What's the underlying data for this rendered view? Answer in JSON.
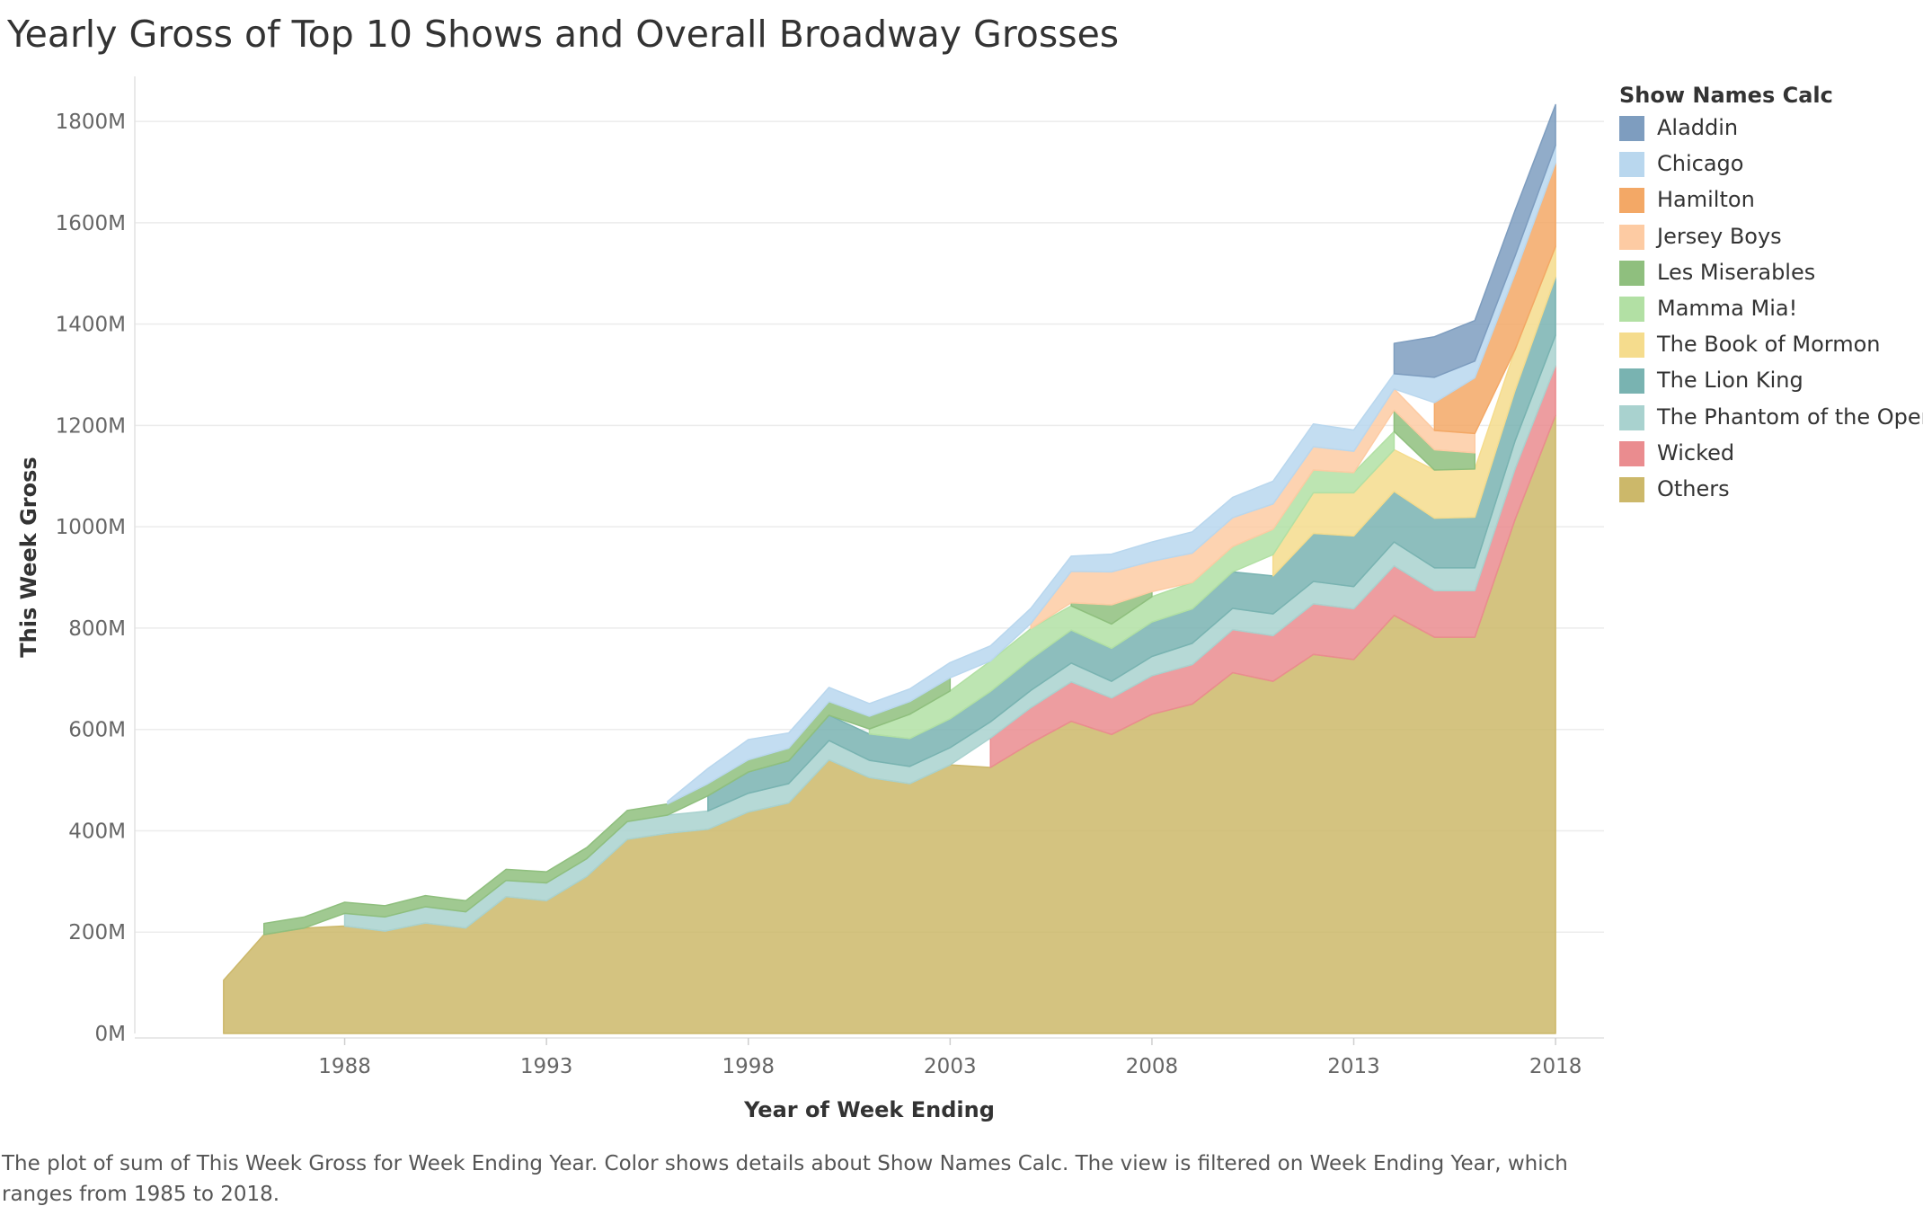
{
  "title": "Yearly Gross of Top 10 Shows and Overall Broadway Grosses",
  "caption": "The plot of sum of This Week Gross for Week Ending Year.  Color shows details about Show Names Calc. The view is filtered on Week Ending Year, which ranges from 1985 to 2018.",
  "legend": {
    "title": "Show Names Calc",
    "placement": "right",
    "items": [
      {
        "name": "Aladdin",
        "color": "#7e9dbf"
      },
      {
        "name": "Chicago",
        "color": "#b9d7ee"
      },
      {
        "name": "Hamilton",
        "color": "#f3a866"
      },
      {
        "name": "Jersey Boys",
        "color": "#fdcba3"
      },
      {
        "name": "Les Miserables",
        "color": "#8fbf7e"
      },
      {
        "name": "Mamma Mia!",
        "color": "#b2e0a4"
      },
      {
        "name": "The Book of Mormon",
        "color": "#f5dc8d"
      },
      {
        "name": "The Lion King",
        "color": "#79b3b1"
      },
      {
        "name": "The Phantom of the Opera",
        "color": "#a9d2cf"
      },
      {
        "name": "Wicked",
        "color": "#ea8c8f"
      },
      {
        "name": "Others",
        "color": "#ccb86a"
      }
    ]
  },
  "chart_data": {
    "type": "area",
    "stacked": true,
    "title": "Yearly Gross of Top 10 Shows and Overall Broadway Grosses",
    "xlabel": "Year of Week Ending",
    "ylabel": "This Week Gross",
    "ylim": [
      0,
      1880
    ],
    "y_unit": "M",
    "grid": true,
    "x_ticks": [
      1988,
      1993,
      1998,
      2003,
      2008,
      2013,
      2018
    ],
    "y_ticks": [
      {
        "value": 0,
        "label": "0M"
      },
      {
        "value": 200,
        "label": "200M"
      },
      {
        "value": 400,
        "label": "400M"
      },
      {
        "value": 600,
        "label": "600M"
      },
      {
        "value": 800,
        "label": "800M"
      },
      {
        "value": 1000,
        "label": "1000M"
      },
      {
        "value": 1200,
        "label": "1200M"
      },
      {
        "value": 1400,
        "label": "1400M"
      },
      {
        "value": 1600,
        "label": "1600M"
      },
      {
        "value": 1800,
        "label": "1800M"
      }
    ],
    "x": [
      1985,
      1986,
      1987,
      1988,
      1989,
      1990,
      1991,
      1992,
      1993,
      1994,
      1995,
      1996,
      1997,
      1998,
      1999,
      2000,
      2001,
      2002,
      2003,
      2004,
      2005,
      2006,
      2007,
      2008,
      2009,
      2010,
      2011,
      2012,
      2013,
      2014,
      2015,
      2016,
      2017,
      2018
    ],
    "series": [
      {
        "name": "Others",
        "values": [
          105,
          195,
          208,
          212,
          202,
          218,
          208,
          270,
          262,
          310,
          383,
          395,
          403,
          437,
          455,
          540,
          505,
          493,
          530,
          525,
          573,
          616,
          590,
          630,
          650,
          712,
          695,
          748,
          738,
          825,
          782,
          782,
          1015,
          1220
        ]
      },
      {
        "name": "Wicked",
        "values": [
          null,
          null,
          null,
          null,
          null,
          null,
          null,
          null,
          null,
          null,
          null,
          null,
          null,
          null,
          null,
          null,
          null,
          null,
          null,
          58,
          70,
          78,
          72,
          76,
          78,
          85,
          90,
          100,
          100,
          98,
          92,
          92,
          100,
          98
        ]
      },
      {
        "name": "The Phantom of the Opera",
        "values": [
          null,
          null,
          null,
          25,
          28,
          32,
          32,
          32,
          35,
          35,
          35,
          36,
          36,
          37,
          38,
          38,
          34,
          34,
          34,
          32,
          34,
          37,
          33,
          38,
          42,
          42,
          43,
          44,
          44,
          47,
          45,
          45,
          55,
          60
        ]
      },
      {
        "name": "The Lion King",
        "values": [
          null,
          null,
          null,
          null,
          null,
          null,
          null,
          null,
          null,
          null,
          null,
          null,
          30,
          42,
          45,
          50,
          52,
          55,
          57,
          60,
          62,
          65,
          65,
          68,
          68,
          72,
          75,
          95,
          100,
          100,
          98,
          100,
          100,
          115
        ]
      },
      {
        "name": "The Book of Mormon",
        "values": [
          null,
          null,
          null,
          null,
          null,
          null,
          null,
          null,
          null,
          null,
          null,
          null,
          null,
          null,
          null,
          null,
          null,
          null,
          null,
          null,
          null,
          null,
          null,
          null,
          null,
          null,
          42,
          80,
          85,
          82,
          95,
          95,
          80,
          60
        ]
      },
      {
        "name": "Mamma Mia!",
        "values": [
          null,
          null,
          null,
          null,
          null,
          null,
          null,
          null,
          null,
          null,
          null,
          null,
          null,
          null,
          null,
          null,
          10,
          48,
          55,
          60,
          60,
          48,
          48,
          50,
          52,
          50,
          50,
          45,
          40,
          36,
          null,
          null,
          null,
          null
        ]
      },
      {
        "name": "Les Miserables",
        "values": [
          null,
          22,
          22,
          22,
          22,
          22,
          22,
          22,
          22,
          22,
          22,
          22,
          24,
          24,
          25,
          27,
          25,
          25,
          26,
          null,
          null,
          6,
          38,
          10,
          null,
          null,
          null,
          null,
          null,
          42,
          40,
          32,
          null,
          null
        ]
      },
      {
        "name": "Jersey Boys",
        "values": [
          null,
          null,
          null,
          null,
          null,
          null,
          null,
          null,
          null,
          null,
          null,
          null,
          null,
          null,
          null,
          null,
          null,
          null,
          null,
          null,
          10,
          62,
          65,
          60,
          58,
          57,
          50,
          46,
          42,
          42,
          38,
          38,
          null,
          null
        ]
      },
      {
        "name": "Hamilton",
        "values": [
          null,
          null,
          null,
          null,
          null,
          null,
          null,
          null,
          null,
          null,
          null,
          null,
          null,
          null,
          null,
          null,
          null,
          null,
          null,
          null,
          null,
          null,
          null,
          null,
          null,
          null,
          null,
          null,
          null,
          null,
          55,
          110,
          150,
          165
        ]
      },
      {
        "name": "Chicago",
        "values": [
          null,
          null,
          null,
          null,
          null,
          null,
          null,
          null,
          null,
          null,
          null,
          5,
          30,
          40,
          30,
          28,
          25,
          25,
          30,
          30,
          30,
          30,
          35,
          38,
          42,
          40,
          45,
          45,
          42,
          30,
          50,
          33,
          35,
          35
        ]
      },
      {
        "name": "Aladdin",
        "values": [
          null,
          null,
          null,
          null,
          null,
          null,
          null,
          null,
          null,
          null,
          null,
          null,
          null,
          null,
          null,
          null,
          null,
          null,
          null,
          null,
          null,
          null,
          null,
          null,
          null,
          null,
          null,
          null,
          null,
          60,
          80,
          80,
          90,
          80
        ]
      }
    ]
  }
}
